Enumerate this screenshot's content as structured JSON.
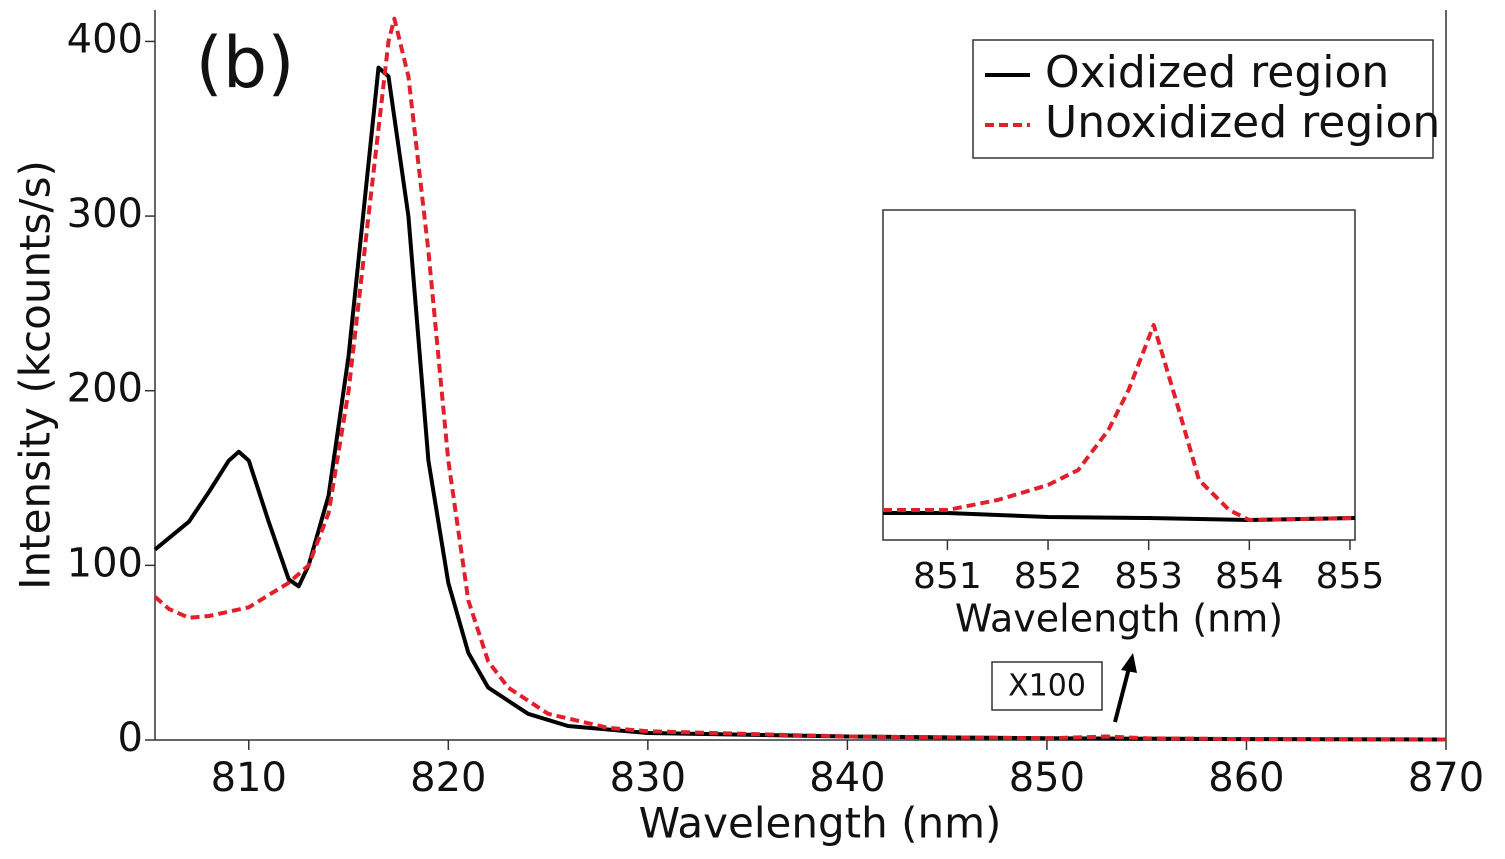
{
  "chart_data": [
    {
      "type": "line",
      "annotations": [
        "(b)",
        "X100"
      ],
      "x_label": "Wavelength (nm)",
      "y_label": "Intensity (kcounts/s)",
      "xlim": [
        805.3,
        870
      ],
      "xticks": [
        810,
        820,
        830,
        840,
        850,
        860,
        870
      ],
      "ylim": [
        0,
        418
      ],
      "yticks": [
        0,
        100,
        200,
        300,
        400
      ],
      "legend": "upper right",
      "series": [
        {
          "name": "Oxidized region",
          "color": "#000000",
          "dashed": false,
          "x": [
            805.3,
            807,
            808,
            809,
            809.5,
            810,
            811,
            812,
            812.5,
            813,
            814,
            815,
            816,
            816.5,
            817,
            818,
            819,
            820,
            821,
            822,
            824,
            826,
            830,
            840,
            850,
            860,
            870
          ],
          "values": [
            109,
            125,
            142,
            160,
            165,
            160,
            125,
            92,
            88,
            100,
            140,
            220,
            330,
            385,
            380,
            300,
            160,
            90,
            50,
            30,
            15,
            8,
            4,
            2,
            1,
            0.5,
            0.3
          ]
        },
        {
          "name": "Unoxidized region",
          "color": "#e0202a",
          "dashed": true,
          "x": [
            805.3,
            806,
            807,
            808,
            810,
            812,
            813,
            814,
            815,
            816,
            817,
            817.3,
            818,
            819,
            820,
            821,
            822,
            823,
            825,
            828,
            830,
            840,
            850,
            853,
            855,
            860,
            870
          ],
          "values": [
            82,
            75,
            70,
            71,
            76,
            90,
            100,
            130,
            200,
            300,
            400,
            413,
            380,
            280,
            160,
            80,
            45,
            30,
            15,
            7,
            5,
            2,
            1,
            2,
            1,
            0.5,
            0.3
          ]
        }
      ]
    },
    {
      "type": "line",
      "x_label": "Wavelength (nm)",
      "xlim": [
        850.36,
        855.05
      ],
      "xticks": [
        851,
        852,
        853,
        854,
        855
      ],
      "ylim": [
        0,
        3.3
      ],
      "series": [
        {
          "color": "#000000",
          "dashed": false,
          "x": [
            850.36,
            851,
            852,
            853,
            854,
            855.05
          ],
          "values": [
            0.27,
            0.27,
            0.23,
            0.22,
            0.2,
            0.22
          ]
        },
        {
          "color": "#e0202a",
          "dashed": true,
          "x": [
            850.36,
            851,
            851.5,
            852,
            852.3,
            852.6,
            852.8,
            853.05,
            853.3,
            853.5,
            853.8,
            854,
            855.05
          ],
          "values": [
            0.3,
            0.3,
            0.4,
            0.55,
            0.7,
            1.1,
            1.5,
            2.15,
            1.3,
            0.6,
            0.3,
            0.2,
            0.22
          ]
        }
      ]
    }
  ]
}
